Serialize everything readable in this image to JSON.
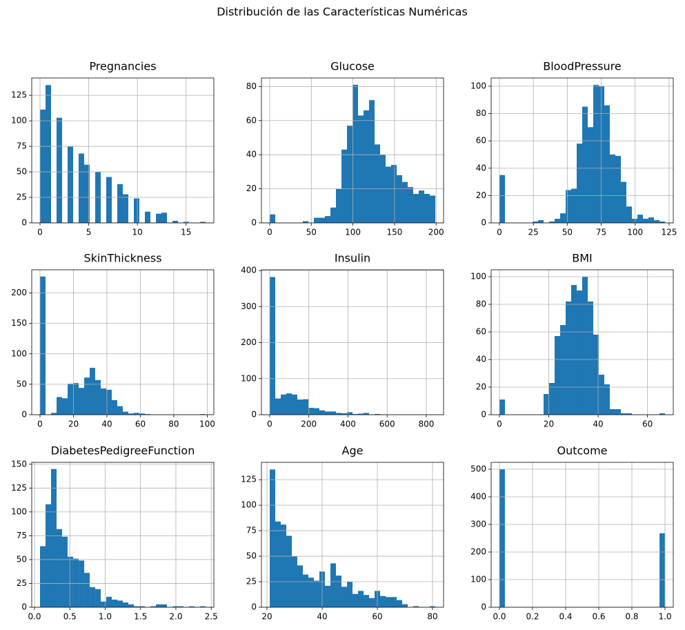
{
  "title": "Distribución de las Características Numéricas",
  "chart_data": [
    {
      "type": "histogram",
      "title": "Pregnancies",
      "color": "#1f77b4",
      "grid": true,
      "bins": [
        0,
        0.567,
        1.133,
        1.7,
        2.267,
        2.833,
        3.4,
        3.967,
        4.533,
        5.1,
        5.667,
        6.233,
        6.8,
        7.367,
        7.933,
        8.5,
        9.067,
        9.633,
        10.2,
        10.767,
        11.333,
        11.9,
        12.467,
        13.033,
        13.6,
        14.167,
        14.733,
        15.3,
        15.867,
        16.433,
        17
      ],
      "values": [
        111,
        135,
        0,
        103,
        0,
        75,
        0,
        68,
        57,
        0,
        50,
        0,
        45,
        0,
        38,
        28,
        0,
        24,
        0,
        11,
        0,
        9,
        10,
        0,
        2,
        0,
        1,
        0,
        0,
        1
      ],
      "xlim": [
        -0.85,
        17.85
      ],
      "xticks": [
        0,
        5,
        10,
        15
      ],
      "ylim": [
        0,
        142
      ],
      "yticks": [
        0,
        25,
        50,
        75,
        100,
        125
      ]
    },
    {
      "type": "histogram",
      "title": "Glucose",
      "color": "#1f77b4",
      "grid": true,
      "bins": [
        0,
        6.633,
        13.267,
        19.9,
        26.533,
        33.167,
        39.8,
        46.433,
        53.067,
        59.7,
        66.333,
        72.967,
        79.6,
        86.233,
        92.867,
        99.5,
        106.133,
        112.767,
        119.4,
        126.033,
        132.667,
        139.3,
        145.933,
        152.567,
        159.2,
        165.833,
        172.467,
        179.1,
        185.733,
        192.367,
        199
      ],
      "values": [
        5,
        0,
        0,
        0,
        0,
        0,
        1,
        0,
        3,
        3,
        4,
        9,
        20,
        43,
        57,
        81,
        63,
        66,
        72,
        46,
        40,
        33,
        34,
        28,
        24,
        21,
        17,
        19,
        17,
        16
      ],
      "xlim": [
        -9.95,
        208.95
      ],
      "xticks": [
        0,
        50,
        100,
        150,
        200
      ],
      "ylim": [
        0,
        85
      ],
      "yticks": [
        0,
        20,
        40,
        60,
        80
      ]
    },
    {
      "type": "histogram",
      "title": "BloodPressure",
      "color": "#1f77b4",
      "grid": true,
      "bins": [
        0,
        4.067,
        8.133,
        12.2,
        16.267,
        20.333,
        24.4,
        28.467,
        32.533,
        36.6,
        40.667,
        44.733,
        48.8,
        52.867,
        56.933,
        61,
        65.067,
        69.133,
        73.2,
        77.267,
        81.333,
        85.4,
        89.467,
        93.533,
        97.6,
        101.667,
        105.733,
        109.8,
        113.867,
        117.933,
        122
      ],
      "values": [
        35,
        0,
        0,
        0,
        0,
        0,
        1,
        2,
        0,
        1,
        3,
        7,
        24,
        25,
        58,
        85,
        70,
        101,
        100,
        86,
        50,
        49,
        30,
        12,
        3,
        6,
        3,
        4,
        2,
        1
      ],
      "xlim": [
        -6.1,
        128.1
      ],
      "xticks": [
        0,
        25,
        50,
        75,
        100,
        125
      ],
      "ylim": [
        0,
        106
      ],
      "yticks": [
        0,
        20,
        40,
        60,
        80,
        100
      ]
    },
    {
      "type": "histogram",
      "title": "SkinThickness",
      "color": "#1f77b4",
      "grid": true,
      "bins": [
        0,
        3.3,
        6.6,
        9.9,
        13.2,
        16.5,
        19.8,
        23.1,
        26.4,
        29.7,
        33,
        36.3,
        39.6,
        42.9,
        46.2,
        49.5,
        52.8,
        56.1,
        59.4,
        62.7,
        66,
        69.3,
        72.6,
        75.9,
        79.2,
        82.5,
        85.8,
        89.1,
        92.4,
        95.7,
        99
      ],
      "values": [
        227,
        0,
        3,
        29,
        27,
        51,
        52,
        44,
        61,
        77,
        57,
        43,
        41,
        24,
        14,
        5,
        2,
        3,
        2,
        1,
        0,
        0,
        0,
        0,
        0,
        0,
        0,
        0,
        0,
        1
      ],
      "xlim": [
        -4.95,
        103.95
      ],
      "xticks": [
        0,
        20,
        40,
        60,
        80,
        100
      ],
      "ylim": [
        0,
        238
      ],
      "yticks": [
        0,
        50,
        100,
        150,
        200
      ]
    },
    {
      "type": "histogram",
      "title": "Insulin",
      "color": "#1f77b4",
      "grid": true,
      "bins": [
        0,
        28.2,
        56.4,
        84.6,
        112.8,
        141,
        169.2,
        197.4,
        225.6,
        253.8,
        282,
        310.2,
        338.4,
        366.6,
        394.8,
        423,
        451.2,
        479.4,
        507.6,
        535.8,
        564,
        592.2,
        620.4,
        648.6,
        676.8,
        705,
        733.2,
        761.4,
        789.6,
        817.8,
        846
      ],
      "values": [
        382,
        45,
        56,
        59,
        56,
        42,
        43,
        19,
        18,
        12,
        9,
        9,
        5,
        4,
        7,
        2,
        3,
        5,
        1,
        2,
        1,
        0,
        0,
        0,
        0,
        0,
        0,
        0,
        0,
        1
      ],
      "xlim": [
        -42.3,
        888.3
      ],
      "xticks": [
        0,
        200,
        400,
        600,
        800
      ],
      "ylim": [
        0,
        402
      ],
      "yticks": [
        0,
        100,
        200,
        300,
        400
      ]
    },
    {
      "type": "histogram",
      "title": "BMI",
      "color": "#1f77b4",
      "grid": true,
      "bins": [
        0,
        2.237,
        4.473,
        6.71,
        8.947,
        11.183,
        13.42,
        15.657,
        17.893,
        20.13,
        22.367,
        24.603,
        26.84,
        29.077,
        31.313,
        33.55,
        35.787,
        38.023,
        40.26,
        42.497,
        44.733,
        46.97,
        49.207,
        51.443,
        53.68,
        55.917,
        58.153,
        60.39,
        62.627,
        64.863,
        67.1
      ],
      "values": [
        11,
        0,
        0,
        0,
        0,
        0,
        0,
        0,
        15,
        23,
        57,
        65,
        82,
        94,
        90,
        100,
        82,
        58,
        29,
        22,
        4,
        4,
        1,
        1,
        0,
        0,
        0,
        0,
        0,
        1
      ],
      "xlim": [
        -3.355,
        70.455
      ],
      "xticks": [
        0,
        20,
        40,
        60
      ],
      "ylim": [
        0,
        105
      ],
      "yticks": [
        0,
        20,
        40,
        60,
        80,
        100
      ]
    },
    {
      "type": "histogram",
      "title": "DiabetesPedigreeFunction",
      "color": "#1f77b4",
      "grid": true,
      "bins": [
        0.078,
        0.156,
        0.234,
        0.312,
        0.39,
        0.468,
        0.546,
        0.625,
        0.703,
        0.781,
        0.859,
        0.937,
        1.015,
        1.093,
        1.171,
        1.249,
        1.327,
        1.405,
        1.483,
        1.561,
        1.639,
        1.717,
        1.796,
        1.874,
        1.952,
        2.03,
        2.108,
        2.186,
        2.264,
        2.342,
        2.42
      ],
      "values": [
        64,
        108,
        145,
        82,
        74,
        53,
        51,
        49,
        36,
        21,
        19,
        6,
        11,
        8,
        7,
        5,
        3,
        1,
        1,
        0,
        1,
        3,
        3,
        0,
        1,
        1,
        0,
        1,
        0,
        1
      ],
      "xlim": [
        -0.0391,
        2.5371
      ],
      "xticks": [
        {
          "value": 0,
          "label": "0.0"
        },
        {
          "value": 0.5,
          "label": "0.5"
        },
        {
          "value": 1,
          "label": "1.0"
        },
        {
          "value": 1.5,
          "label": "1.5"
        },
        {
          "value": 2,
          "label": "2.0"
        },
        {
          "value": 2.5,
          "label": "2.5"
        }
      ],
      "ylim": [
        0,
        152
      ],
      "yticks": [
        0,
        25,
        50,
        75,
        100,
        125,
        150
      ]
    },
    {
      "type": "histogram",
      "title": "Age",
      "color": "#1f77b4",
      "grid": true,
      "bins": [
        21,
        23,
        25,
        27,
        29,
        31,
        33,
        35,
        37,
        39,
        41,
        43,
        45,
        47,
        49,
        51,
        53,
        55,
        57,
        59,
        61,
        63,
        65,
        67,
        69,
        71,
        73,
        75,
        77,
        79,
        81
      ],
      "values": [
        135,
        84,
        81,
        70,
        50,
        41,
        32,
        29,
        26,
        35,
        21,
        43,
        31,
        20,
        25,
        13,
        16,
        12,
        9,
        16,
        11,
        10,
        10,
        7,
        3,
        0,
        1,
        0,
        0,
        1
      ],
      "xlim": [
        18,
        84
      ],
      "xticks": [
        20,
        40,
        60,
        80
      ],
      "ylim": [
        0,
        142
      ],
      "yticks": [
        0,
        25,
        50,
        75,
        100,
        125
      ]
    },
    {
      "type": "histogram",
      "title": "Outcome",
      "color": "#1f77b4",
      "grid": true,
      "bins": [
        0,
        0.033,
        0.067,
        0.1,
        0.133,
        0.167,
        0.2,
        0.233,
        0.267,
        0.3,
        0.333,
        0.367,
        0.4,
        0.433,
        0.467,
        0.5,
        0.533,
        0.567,
        0.6,
        0.633,
        0.667,
        0.7,
        0.733,
        0.767,
        0.8,
        0.833,
        0.867,
        0.9,
        0.933,
        0.967,
        1
      ],
      "values": [
        500,
        0,
        0,
        0,
        0,
        0,
        0,
        0,
        0,
        0,
        0,
        0,
        0,
        0,
        0,
        0,
        0,
        0,
        0,
        0,
        0,
        0,
        0,
        0,
        0,
        0,
        0,
        0,
        0,
        268
      ],
      "xlim": [
        -0.05,
        1.05
      ],
      "xticks": [
        {
          "value": 0,
          "label": "0.0"
        },
        {
          "value": 0.2,
          "label": "0.2"
        },
        {
          "value": 0.4,
          "label": "0.4"
        },
        {
          "value": 0.6,
          "label": "0.6"
        },
        {
          "value": 0.8,
          "label": "0.8"
        },
        {
          "value": 1,
          "label": "1.0"
        }
      ],
      "ylim": [
        0,
        525
      ],
      "yticks": [
        0,
        100,
        200,
        300,
        400,
        500
      ]
    }
  ]
}
